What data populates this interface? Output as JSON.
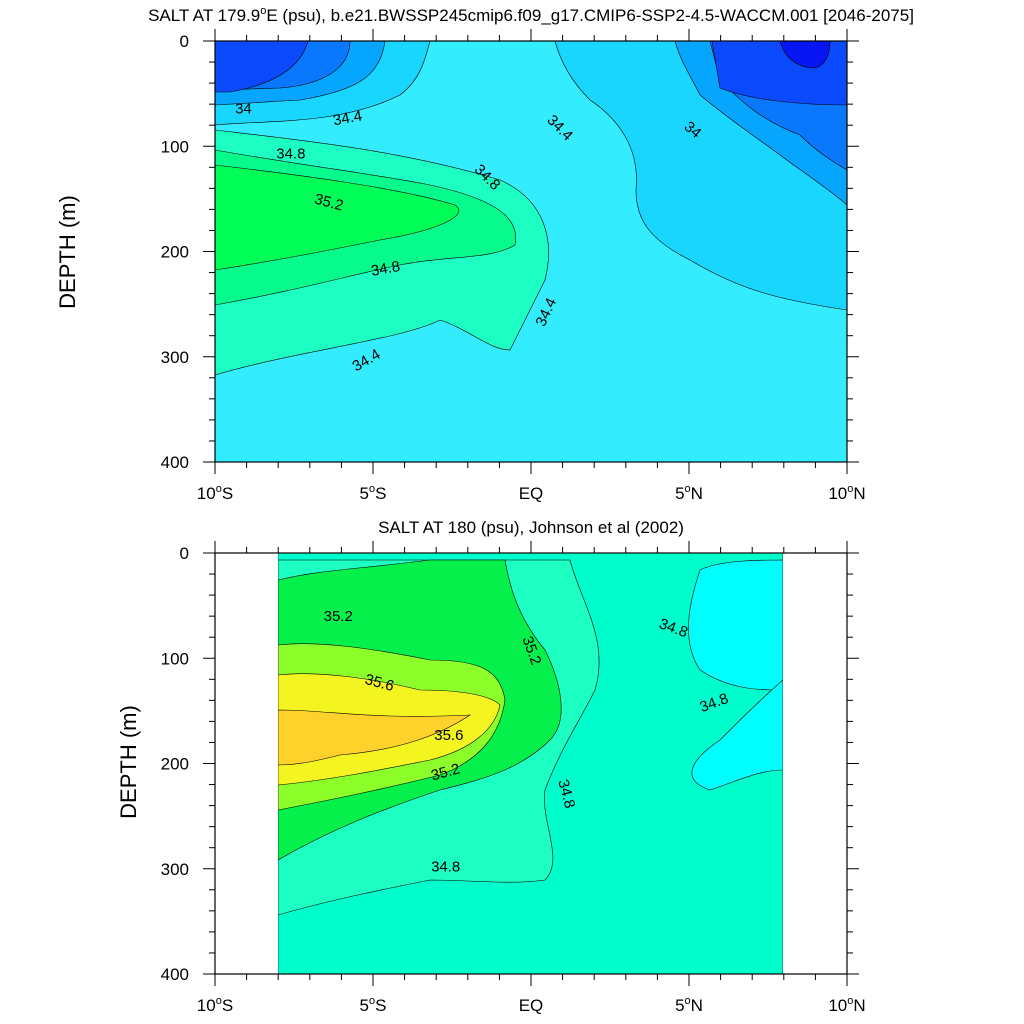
{
  "chart_data": [
    {
      "type": "heatmap",
      "subtype": "filled-contour",
      "title_parts": [
        "SALT AT 179.9",
        "o",
        "E (psu), b.e21.BWSSP245cmip6.f09_g17.CMIP6-SSP2-4.5-WACCM.001 [2046-2075]"
      ],
      "xlabel": "",
      "ylabel": "DEPTH (m)",
      "xlim": [
        -10,
        10
      ],
      "ylim": [
        0,
        400
      ],
      "y_inverted": true,
      "x_ticks": [
        {
          "value": -10,
          "label": "10",
          "deg": "o",
          "hemi": "S"
        },
        {
          "value": -5,
          "label": "5",
          "deg": "o",
          "hemi": "S"
        },
        {
          "value": 0,
          "label": "EQ",
          "deg": "",
          "hemi": ""
        },
        {
          "value": 5,
          "label": "5",
          "deg": "o",
          "hemi": "N"
        },
        {
          "value": 10,
          "label": "10",
          "deg": "o",
          "hemi": "N"
        }
      ],
      "y_ticks": [
        0,
        100,
        200,
        300,
        400
      ],
      "contour_labels": [
        {
          "text": "34",
          "lat": -9.1,
          "depth": 65,
          "angle": 0
        },
        {
          "text": "34.4",
          "lat": -5.8,
          "depth": 74,
          "angle": -10
        },
        {
          "text": "34.4",
          "lat": 0.9,
          "depth": 83,
          "angle": 45
        },
        {
          "text": "34",
          "lat": 5.1,
          "depth": 85,
          "angle": 40
        },
        {
          "text": "34.8",
          "lat": -7.6,
          "depth": 108,
          "angle": 0
        },
        {
          "text": "34.8",
          "lat": -1.4,
          "depth": 130,
          "angle": 45
        },
        {
          "text": "35.2",
          "lat": -6.4,
          "depth": 154,
          "angle": 15
        },
        {
          "text": "34.8",
          "lat": -4.6,
          "depth": 217,
          "angle": -10
        },
        {
          "text": "34.4",
          "lat": 0.5,
          "depth": 258,
          "angle": -65
        },
        {
          "text": "34.4",
          "lat": -5.2,
          "depth": 304,
          "angle": -30
        }
      ]
    },
    {
      "type": "heatmap",
      "subtype": "filled-contour",
      "title_parts": [
        "SALT AT 180 (psu), Johnson et al (2002)"
      ],
      "xlabel": "",
      "ylabel": "DEPTH (m)",
      "xlim": [
        -10,
        10
      ],
      "ylim": [
        0,
        400
      ],
      "y_inverted": true,
      "data_lat_range": [
        -8,
        8
      ],
      "x_ticks": [
        {
          "value": -10,
          "label": "10",
          "deg": "o",
          "hemi": "S"
        },
        {
          "value": -5,
          "label": "5",
          "deg": "o",
          "hemi": "S"
        },
        {
          "value": 0,
          "label": "EQ",
          "deg": "",
          "hemi": ""
        },
        {
          "value": 5,
          "label": "5",
          "deg": "o",
          "hemi": "N"
        },
        {
          "value": 10,
          "label": "10",
          "deg": "o",
          "hemi": "N"
        }
      ],
      "y_ticks": [
        0,
        100,
        200,
        300,
        400
      ],
      "contour_labels": [
        {
          "text": "35.2",
          "lat": -6.1,
          "depth": 61,
          "angle": 0
        },
        {
          "text": "35.2",
          "lat": 0.0,
          "depth": 93,
          "angle": 70
        },
        {
          "text": "34.8",
          "lat": 4.5,
          "depth": 72,
          "angle": 20
        },
        {
          "text": "35.6",
          "lat": -4.8,
          "depth": 124,
          "angle": 15
        },
        {
          "text": "34.8",
          "lat": 5.8,
          "depth": 143,
          "angle": -20
        },
        {
          "text": "35.6",
          "lat": -2.6,
          "depth": 174,
          "angle": 0
        },
        {
          "text": "35.2",
          "lat": -2.7,
          "depth": 209,
          "angle": -15
        },
        {
          "text": "34.8",
          "lat": 1.1,
          "depth": 229,
          "angle": 75
        },
        {
          "text": "34.8",
          "lat": -2.7,
          "depth": 299,
          "angle": 0
        }
      ]
    }
  ]
}
